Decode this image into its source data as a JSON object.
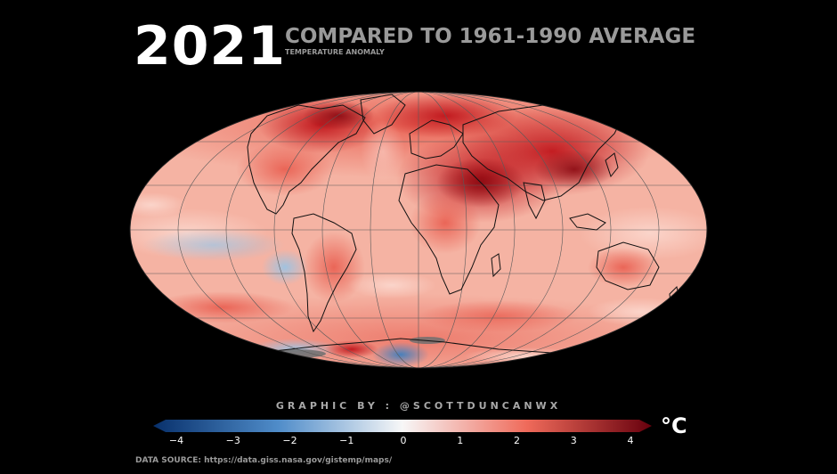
{
  "header": {
    "year": "2021",
    "headline": "COMPARED TO 1961-1990 AVERAGE",
    "subhead": "TEMPERATURE ANOMALY"
  },
  "colorbar": {
    "ticks": [
      "−4",
      "−3",
      "−2",
      "−1",
      "0",
      "1",
      "2",
      "3",
      "4"
    ],
    "tick_values": [
      -4,
      -3,
      -2,
      -1,
      0,
      1,
      2,
      3,
      4
    ],
    "range": [
      -4,
      4
    ],
    "unit": "°C",
    "colors": {
      "cold_end": "#08306b",
      "cold_mid": "#4f8cc9",
      "neutral": "#f7f7f7",
      "warm_mid": "#ef6a5a",
      "warm_end": "#67000d"
    }
  },
  "map": {
    "projection": "mollweide",
    "background": "#000000",
    "coastline_color": "#000000",
    "graticule_color": "#444444"
  },
  "credit": "GRAPHIC BY : @SCOTTDUNCANWX",
  "source": "DATA SOURCE: https://data.giss.nasa.gov/gistemp/maps/"
}
